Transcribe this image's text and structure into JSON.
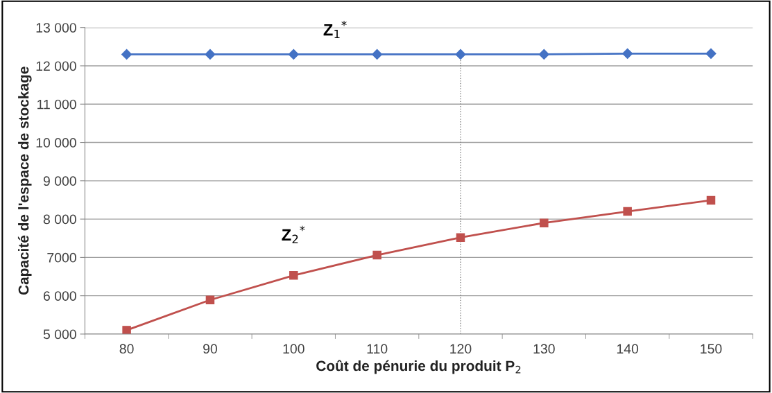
{
  "chart_data": {
    "type": "line",
    "xlabel": "Coût de pénurie du produit P$_{2}$",
    "ylabel": "Capacité de l'espace de stockage",
    "categories": [
      "80",
      "90",
      "100",
      "110",
      "120",
      "130",
      "140",
      "150"
    ],
    "series": [
      {
        "name": "Z$_{1}$$^{*}$",
        "color": "#4472c4",
        "marker": "diamond",
        "values": [
          12300,
          12300,
          12300,
          12300,
          12300,
          12300,
          12320,
          12320
        ]
      },
      {
        "name": "Z$_{2}$$^{*}$",
        "color": "#c0504d",
        "marker": "square",
        "values": [
          5100,
          5890,
          6530,
          7060,
          7520,
          7900,
          8200,
          8490
        ]
      }
    ],
    "ylim": [
      5000,
      13000
    ],
    "yticks": [
      {
        "value": 5000,
        "label": "5 000"
      },
      {
        "value": 6000,
        "label": "6 000"
      },
      {
        "value": 7000,
        "label": "7000"
      },
      {
        "value": 8000,
        "label": "8 000"
      },
      {
        "value": 9000,
        "label": "9 000"
      },
      {
        "value": 10000,
        "label": "10 000"
      },
      {
        "value": 11000,
        "label": "11 000"
      },
      {
        "value": 12000,
        "label": "12 000"
      },
      {
        "value": 13000,
        "label": "13 000"
      }
    ],
    "ref_lines": [
      {
        "axis": "x",
        "value": "120",
        "color": "#808080",
        "line_style": "dotted"
      }
    ],
    "grid": "y",
    "legend": false,
    "line_style": "solid"
  }
}
